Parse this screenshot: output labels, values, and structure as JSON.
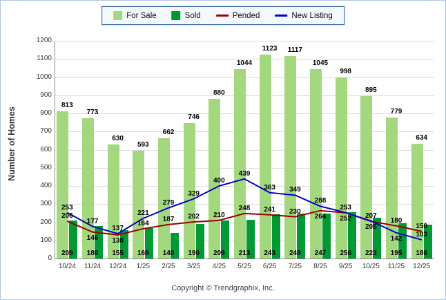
{
  "ylabel": "Number of Homes",
  "footer": "Copyright © Trendgraphix, Inc.",
  "legend": {
    "items": [
      {
        "label": "For Sale",
        "color": "#A3D87E",
        "type": "bar"
      },
      {
        "label": "Sold",
        "color": "#009933",
        "type": "bar"
      },
      {
        "label": "Pended",
        "color": "#990000",
        "type": "line"
      },
      {
        "label": "New Listing",
        "color": "#0000CC",
        "type": "line"
      }
    ]
  },
  "chart_data": {
    "type": "bar",
    "title": "",
    "xlabel": "",
    "ylabel": "Number of Homes",
    "ylim": [
      0,
      1200
    ],
    "ytick_step": 100,
    "grid": true,
    "legend_position": "top",
    "categories": [
      "10/24",
      "11/24",
      "12/24",
      "1/25",
      "2/25",
      "3/25",
      "4/25",
      "5/25",
      "6/25",
      "7/25",
      "8/25",
      "9/25",
      "10/25",
      "11/25",
      "12/25"
    ],
    "series": [
      {
        "name": "For Sale",
        "kind": "bar",
        "color": "#A3D87E",
        "values": [
          813,
          773,
          630,
          593,
          662,
          746,
          880,
          1044,
          1123,
          1117,
          1045,
          998,
          895,
          779,
          634
        ]
      },
      {
        "name": "Sold",
        "kind": "bar",
        "color": "#009933",
        "values": [
          209,
          180,
          155,
          169,
          140,
          190,
          209,
          213,
          243,
          249,
          247,
          256,
          223,
          195,
          186
        ]
      },
      {
        "name": "Pended",
        "kind": "line",
        "color": "#990000",
        "values": [
          206,
          146,
          130,
          164,
          187,
          202,
          210,
          248,
          241,
          230,
          264,
          252,
          205,
          180,
          150
        ]
      },
      {
        "name": "New Listing",
        "kind": "line",
        "color": "#0000CC",
        "values": [
          253,
          177,
          137,
          221,
          279,
          329,
          400,
          439,
          363,
          349,
          288,
          253,
          207,
          142,
          103
        ]
      }
    ]
  }
}
